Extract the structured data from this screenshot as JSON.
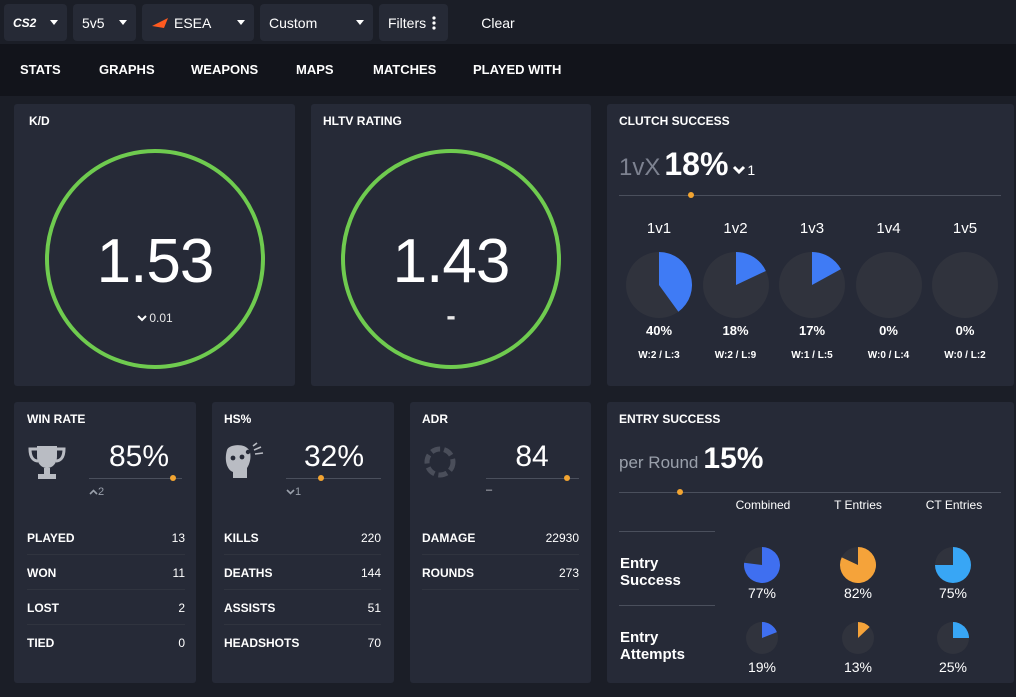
{
  "filters": {
    "game": "CS2",
    "mode": "5v5",
    "platform": "ESEA",
    "range": "Custom",
    "filters_label": "Filters",
    "clear_label": "Clear"
  },
  "nav": {
    "stats": "STATS",
    "graphs": "GRAPHS",
    "weapons": "WEAPONS",
    "maps": "MAPS",
    "matches": "MATCHES",
    "played_with": "PLAYED WITH"
  },
  "kd": {
    "title": "K/D",
    "value": "1.53",
    "delta": "0.01"
  },
  "hltv": {
    "title": "HLTV RATING",
    "value": "1.43",
    "delta": "-"
  },
  "clutch": {
    "title": "CLUTCH SUCCESS",
    "prefix": "1vX",
    "value": "18%",
    "delta": "1",
    "cols": [
      {
        "label": "1v1",
        "pct": "40%",
        "fraction": 0.4,
        "wl": "W:2 / L:3"
      },
      {
        "label": "1v2",
        "pct": "18%",
        "fraction": 0.18,
        "wl": "W:2 / L:9"
      },
      {
        "label": "1v3",
        "pct": "17%",
        "fraction": 0.17,
        "wl": "W:1 / L:5"
      },
      {
        "label": "1v4",
        "pct": "0%",
        "fraction": 0,
        "wl": "W:0 / L:4"
      },
      {
        "label": "1v5",
        "pct": "0%",
        "fraction": 0,
        "wl": "W:0 / L:2"
      }
    ]
  },
  "winrate": {
    "title": "WIN RATE",
    "value": "85%",
    "delta": "2",
    "rows": [
      {
        "label": "PLAYED",
        "value": "13"
      },
      {
        "label": "WON",
        "value": "11"
      },
      {
        "label": "LOST",
        "value": "2"
      },
      {
        "label": "TIED",
        "value": "0"
      }
    ]
  },
  "hs": {
    "title": "HS%",
    "value": "32%",
    "delta": "1",
    "rows": [
      {
        "label": "KILLS",
        "value": "220"
      },
      {
        "label": "DEATHS",
        "value": "144"
      },
      {
        "label": "ASSISTS",
        "value": "51"
      },
      {
        "label": "HEADSHOTS",
        "value": "70"
      }
    ]
  },
  "adr": {
    "title": "ADR",
    "value": "84",
    "delta": "–",
    "rows": [
      {
        "label": "DAMAGE",
        "value": "22930"
      },
      {
        "label": "ROUNDS",
        "value": "273"
      }
    ]
  },
  "entry": {
    "title": "ENTRY SUCCESS",
    "prefix": "per Round",
    "value": "15%",
    "headers": [
      "Combined",
      "T Entries",
      "CT Entries"
    ],
    "success_label_1": "Entry",
    "success_label_2": "Success",
    "attempts_label_1": "Entry",
    "attempts_label_2": "Attempts",
    "success": [
      {
        "pct": "77%",
        "fraction": 0.77,
        "color": "#3f6ff0"
      },
      {
        "pct": "82%",
        "fraction": 0.82,
        "color": "#f5a33a"
      },
      {
        "pct": "75%",
        "fraction": 0.75,
        "color": "#38a6f5"
      }
    ],
    "attempts": [
      {
        "pct": "19%",
        "fraction": 0.19,
        "color": "#3f6ff0"
      },
      {
        "pct": "13%",
        "fraction": 0.13,
        "color": "#f5a33a"
      },
      {
        "pct": "25%",
        "fraction": 0.25,
        "color": "#38a6f5"
      }
    ]
  },
  "colors": {
    "ring": "#6fcb4f",
    "clutch_pie": "#3f7bf5",
    "pie_bg": "#30333d",
    "accent_dot": "#f2a431",
    "esea_logo": "#ff5a1f"
  }
}
